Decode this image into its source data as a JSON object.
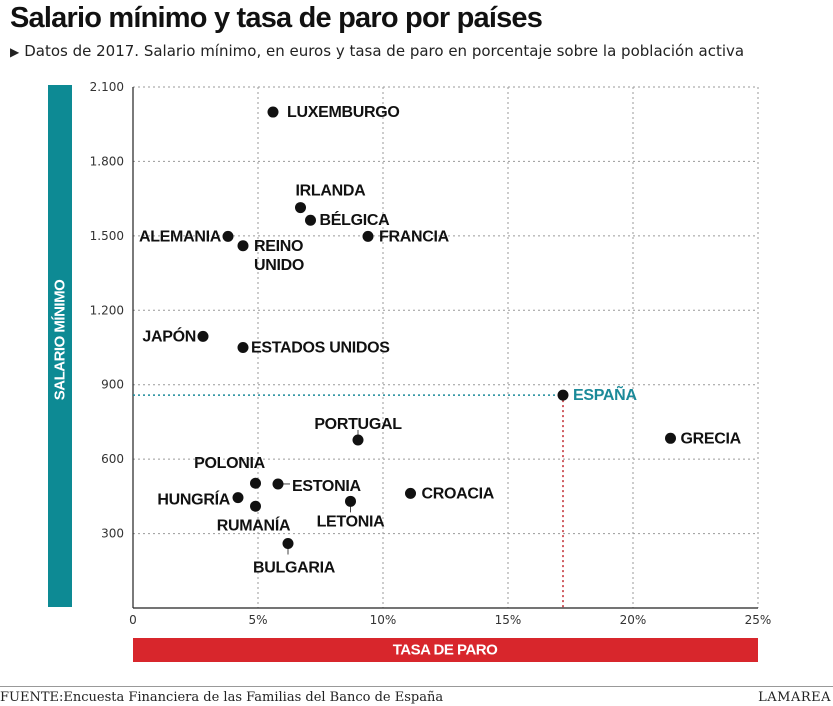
{
  "title": "Salario mínimo y tasa de paro por países",
  "subtitle": "Datos de 2017. Salario mínimo, en euros y tasa de paro en porcentaje sobre la población activa",
  "subtitle_marker_icon": "triangle-right-icon",
  "footer": {
    "source": "FUENTE:Encuesta Financiera de las Familias del Banco de España",
    "brand": "LAMAREA"
  },
  "colors": {
    "ylabel_bar": "#0d8a94",
    "xlabel_bar": "#d8262c",
    "highlight": "#1b8a99",
    "highlight_vertical_line": "#c0272d",
    "points": "#111111",
    "grid": "#9a9a9a"
  },
  "chart_data": {
    "type": "scatter",
    "title": "Salario mínimo y tasa de paro por países",
    "xlabel": "TASA DE PARO",
    "ylabel": "SALARIO MÍNIMO",
    "xlim": [
      0,
      25
    ],
    "ylim": [
      0,
      2100
    ],
    "x_ticks": [
      0,
      5,
      10,
      15,
      20,
      25
    ],
    "x_tick_labels": [
      "0",
      "5%",
      "10%",
      "15%",
      "20%",
      "25%"
    ],
    "y_ticks": [
      300,
      600,
      900,
      1200,
      1500,
      1800,
      2100
    ],
    "y_tick_labels": [
      "300",
      "600",
      "900",
      "1.200",
      "1.500",
      "1.800",
      "2.100"
    ],
    "grid": true,
    "highlight": "ESPAÑA",
    "points": [
      {
        "label": "LUXEMBURGO",
        "x": 5.6,
        "y": 1999
      },
      {
        "label": "IRLANDA",
        "x": 6.7,
        "y": 1614
      },
      {
        "label": "BÉLGICA",
        "x": 7.1,
        "y": 1563
      },
      {
        "label": "FRANCIA",
        "x": 9.4,
        "y": 1498
      },
      {
        "label": "ALEMANIA",
        "x": 3.8,
        "y": 1498
      },
      {
        "label": "REINO UNIDO",
        "x": 4.4,
        "y": 1460
      },
      {
        "label": "JAPÓN",
        "x": 2.8,
        "y": 1095
      },
      {
        "label": "ESTADOS UNIDOS",
        "x": 4.4,
        "y": 1050
      },
      {
        "label": "ESPAÑA",
        "x": 17.2,
        "y": 858
      },
      {
        "label": "GRECIA",
        "x": 21.5,
        "y": 684
      },
      {
        "label": "PORTUGAL",
        "x": 9.0,
        "y": 677
      },
      {
        "label": "POLONIA",
        "x": 4.9,
        "y": 503
      },
      {
        "label": "ESTONIA",
        "x": 5.8,
        "y": 500
      },
      {
        "label": "HUNGRÍA",
        "x": 4.2,
        "y": 445
      },
      {
        "label": "LETONIA",
        "x": 8.7,
        "y": 430
      },
      {
        "label": "CROACIA",
        "x": 11.1,
        "y": 462
      },
      {
        "label": "RUMANÍA",
        "x": 4.9,
        "y": 410
      },
      {
        "label": "BULGARIA",
        "x": 6.2,
        "y": 260
      }
    ]
  }
}
